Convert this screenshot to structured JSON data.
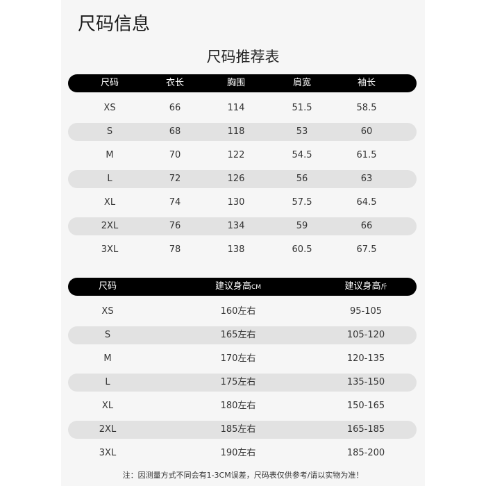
{
  "title": "尺码信息",
  "subtitle": "尺码推荐表",
  "table1": {
    "headers": [
      "尺码",
      "衣长",
      "胸围",
      "肩宽",
      "袖长"
    ],
    "rows": [
      [
        "XS",
        "66",
        "114",
        "51.5",
        "58.5"
      ],
      [
        "S",
        "68",
        "118",
        "53",
        "60"
      ],
      [
        "M",
        "70",
        "122",
        "54.5",
        "61.5"
      ],
      [
        "L",
        "72",
        "126",
        "56",
        "63"
      ],
      [
        "XL",
        "74",
        "130",
        "57.5",
        "64.5"
      ],
      [
        "2XL",
        "76",
        "134",
        "59",
        "66"
      ],
      [
        "3XL",
        "78",
        "138",
        "60.5",
        "67.5"
      ]
    ]
  },
  "table2": {
    "headers": [
      {
        "main": "尺码",
        "unit": ""
      },
      {
        "main": "建议身高",
        "unit": "CM"
      },
      {
        "main": "建议身高",
        "unit": "斤"
      }
    ],
    "rows": [
      [
        "XS",
        "160左右",
        "95-105"
      ],
      [
        "S",
        "165左右",
        "105-120"
      ],
      [
        "M",
        "170左右",
        "120-135"
      ],
      [
        "L",
        "175左右",
        "135-150"
      ],
      [
        "XL",
        "180左右",
        "150-165"
      ],
      [
        "2XL",
        "185左右",
        "165-185"
      ],
      [
        "3XL",
        "190左右",
        "185-200"
      ]
    ]
  },
  "note": "注：因测量方式不同会有1-3CM误差，尺码表仅供参考/请以实物为准！",
  "colors": {
    "header_bg": "#000000",
    "stripe": "#e2e2e2",
    "panel": "#f6f6f6"
  }
}
